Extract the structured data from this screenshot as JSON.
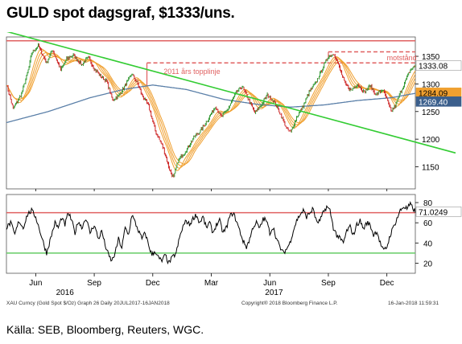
{
  "header": {
    "title": "GULD spot dagsgraf, $1333/uns."
  },
  "footer": {
    "source": "Källa: SEB, Bloomberg, Reuters, WGC."
  },
  "chart_data": [
    {
      "type": "line",
      "panel": "price",
      "ylim": [
        1110,
        1385
      ],
      "y_ticks": [
        1150,
        1200,
        1250,
        1300,
        1350
      ],
      "x_tick_labels": [
        "Jun",
        "Sep",
        "Dec",
        "Mar",
        "Jun",
        "Sep",
        "Dec"
      ],
      "x_tick_index": [
        35,
        105,
        175,
        245,
        315,
        385,
        455
      ],
      "year_labels": [
        {
          "label": "2016",
          "index": 70
        },
        {
          "label": "2017",
          "index": 320
        }
      ],
      "series": [],
      "price_keypoints": [
        [
          0,
          1300
        ],
        [
          8,
          1255
        ],
        [
          18,
          1282
        ],
        [
          27,
          1330
        ],
        [
          30,
          1355
        ],
        [
          38,
          1370
        ],
        [
          48,
          1338
        ],
        [
          55,
          1362
        ],
        [
          65,
          1325
        ],
        [
          72,
          1345
        ],
        [
          80,
          1352
        ],
        [
          90,
          1335
        ],
        [
          98,
          1348
        ],
        [
          105,
          1328
        ],
        [
          112,
          1315
        ],
        [
          120,
          1305
        ],
        [
          127,
          1270
        ],
        [
          135,
          1280
        ],
        [
          145,
          1305
        ],
        [
          150,
          1318
        ],
        [
          157,
          1300
        ],
        [
          162,
          1280
        ],
        [
          170,
          1260
        ],
        [
          178,
          1215
        ],
        [
          188,
          1182
        ],
        [
          195,
          1145
        ],
        [
          200,
          1130
        ],
        [
          205,
          1160
        ],
        [
          215,
          1180
        ],
        [
          225,
          1205
        ],
        [
          232,
          1215
        ],
        [
          242,
          1238
        ],
        [
          250,
          1260
        ],
        [
          257,
          1240
        ],
        [
          265,
          1255
        ],
        [
          275,
          1285
        ],
        [
          282,
          1295
        ],
        [
          290,
          1270
        ],
        [
          297,
          1248
        ],
        [
          305,
          1262
        ],
        [
          312,
          1280
        ],
        [
          320,
          1268
        ],
        [
          327,
          1248
        ],
        [
          335,
          1220
        ],
        [
          340,
          1212
        ],
        [
          347,
          1240
        ],
        [
          355,
          1260
        ],
        [
          362,
          1285
        ],
        [
          370,
          1302
        ],
        [
          377,
          1325
        ],
        [
          385,
          1350
        ],
        [
          392,
          1355
        ],
        [
          398,
          1330
        ],
        [
          405,
          1300
        ],
        [
          412,
          1288
        ],
        [
          420,
          1300
        ],
        [
          428,
          1285
        ],
        [
          435,
          1297
        ],
        [
          442,
          1280
        ],
        [
          450,
          1290
        ],
        [
          455,
          1272
        ],
        [
          460,
          1250
        ],
        [
          465,
          1260
        ],
        [
          470,
          1280
        ],
        [
          477,
          1305
        ],
        [
          483,
          1325
        ],
        [
          489,
          1333
        ]
      ],
      "moving_average_200d": [
        [
          0,
          1230
        ],
        [
          50,
          1250
        ],
        [
          100,
          1275
        ],
        [
          140,
          1290
        ],
        [
          175,
          1298
        ],
        [
          215,
          1290
        ],
        [
          260,
          1272
        ],
        [
          300,
          1263
        ],
        [
          340,
          1258
        ],
        [
          380,
          1262
        ],
        [
          420,
          1270
        ],
        [
          460,
          1275
        ],
        [
          489,
          1283
        ]
      ],
      "trendline": {
        "from": [
          0,
          1395
        ],
        "to": [
          489,
          1205
        ]
      },
      "resistance_2011": {
        "level": 1338,
        "from_index": 168,
        "to_index": 489,
        "label": "2011 års topplinje"
      },
      "resistance_motstand": {
        "level": 1358,
        "from_index": 385,
        "to_index": 489,
        "label": "motstånd"
      },
      "horizontal_line": 1378,
      "last_values": [
        {
          "label": "1333.08",
          "value": 1333.08,
          "bg": "#ffffff",
          "fg": "#000000"
        },
        {
          "label": "1284.09",
          "value": 1284.09,
          "bg": "#f0a030",
          "fg": "#000000"
        },
        {
          "label": "1269.40",
          "value": 1269.4,
          "bg": "#3b5f8c",
          "fg": "#ffffff"
        }
      ]
    },
    {
      "type": "line",
      "panel": "rsi",
      "ylim": [
        10,
        88
      ],
      "y_ticks": [
        20,
        40,
        60,
        80
      ],
      "overbought": 70,
      "oversold": 30,
      "last_value": {
        "label": "71.0249",
        "value": 71.02
      },
      "rsi_keypoints": [
        [
          0,
          55
        ],
        [
          5,
          60
        ],
        [
          10,
          48
        ],
        [
          15,
          62
        ],
        [
          20,
          55
        ],
        [
          25,
          68
        ],
        [
          30,
          72
        ],
        [
          35,
          66
        ],
        [
          40,
          52
        ],
        [
          45,
          38
        ],
        [
          48,
          30
        ],
        [
          52,
          42
        ],
        [
          58,
          60
        ],
        [
          62,
          55
        ],
        [
          66,
          65
        ],
        [
          70,
          58
        ],
        [
          74,
          70
        ],
        [
          78,
          62
        ],
        [
          82,
          50
        ],
        [
          86,
          62
        ],
        [
          90,
          55
        ],
        [
          95,
          65
        ],
        [
          100,
          50
        ],
        [
          105,
          58
        ],
        [
          110,
          44
        ],
        [
          114,
          52
        ],
        [
          118,
          38
        ],
        [
          122,
          28
        ],
        [
          126,
          22
        ],
        [
          130,
          30
        ],
        [
          134,
          44
        ],
        [
          138,
          35
        ],
        [
          142,
          55
        ],
        [
          146,
          48
        ],
        [
          150,
          68
        ],
        [
          154,
          60
        ],
        [
          158,
          52
        ],
        [
          162,
          44
        ],
        [
          166,
          50
        ],
        [
          170,
          38
        ],
        [
          174,
          28
        ],
        [
          178,
          32
        ],
        [
          182,
          25
        ],
        [
          186,
          22
        ],
        [
          190,
          28
        ],
        [
          194,
          20
        ],
        [
          198,
          25
        ],
        [
          203,
          30
        ],
        [
          207,
          45
        ],
        [
          211,
          56
        ],
        [
          215,
          62
        ],
        [
          219,
          58
        ],
        [
          223,
          64
        ],
        [
          227,
          68
        ],
        [
          231,
          60
        ],
        [
          235,
          66
        ],
        [
          239,
          55
        ],
        [
          243,
          60
        ],
        [
          247,
          50
        ],
        [
          251,
          58
        ],
        [
          255,
          62
        ],
        [
          259,
          50
        ],
        [
          263,
          55
        ],
        [
          267,
          66
        ],
        [
          271,
          70
        ],
        [
          275,
          62
        ],
        [
          279,
          52
        ],
        [
          283,
          42
        ],
        [
          287,
          36
        ],
        [
          291,
          44
        ],
        [
          295,
          56
        ],
        [
          299,
          60
        ],
        [
          303,
          54
        ],
        [
          307,
          64
        ],
        [
          311,
          62
        ],
        [
          315,
          50
        ],
        [
          319,
          56
        ],
        [
          323,
          44
        ],
        [
          327,
          36
        ],
        [
          331,
          30
        ],
        [
          335,
          34
        ],
        [
          339,
          40
        ],
        [
          343,
          52
        ],
        [
          347,
          62
        ],
        [
          351,
          68
        ],
        [
          355,
          72
        ],
        [
          359,
          66
        ],
        [
          363,
          70
        ],
        [
          367,
          74
        ],
        [
          371,
          60
        ],
        [
          375,
          62
        ],
        [
          379,
          70
        ],
        [
          383,
          76
        ],
        [
          387,
          72
        ],
        [
          391,
          55
        ],
        [
          395,
          48
        ],
        [
          399,
          44
        ],
        [
          403,
          40
        ],
        [
          407,
          52
        ],
        [
          411,
          56
        ],
        [
          415,
          48
        ],
        [
          419,
          58
        ],
        [
          423,
          62
        ],
        [
          427,
          54
        ],
        [
          431,
          60
        ],
        [
          435,
          58
        ],
        [
          439,
          48
        ],
        [
          443,
          52
        ],
        [
          447,
          40
        ],
        [
          451,
          32
        ],
        [
          455,
          36
        ],
        [
          459,
          48
        ],
        [
          463,
          56
        ],
        [
          467,
          64
        ],
        [
          471,
          72
        ],
        [
          475,
          76
        ],
        [
          479,
          74
        ],
        [
          483,
          78
        ],
        [
          489,
          71
        ]
      ]
    }
  ],
  "footer_meta": {
    "left": "XAU Curncy (Gold Spot  $/Oz) Graph 26  Daily 20JUL2017-16JAN2018",
    "center": "Copyright® 2018 Bloomberg Finance L.P.",
    "right": "16-Jan-2018 11:59:31"
  },
  "colors": {
    "price": "#cc2222",
    "price_up": "#339933",
    "ma200": "#5a7fa8",
    "bands": "#f0a030",
    "trendline": "#33cc33",
    "resistance": "#e06060",
    "rsi": "#000000",
    "overbought": "#e06060",
    "oversold": "#66cc66"
  }
}
